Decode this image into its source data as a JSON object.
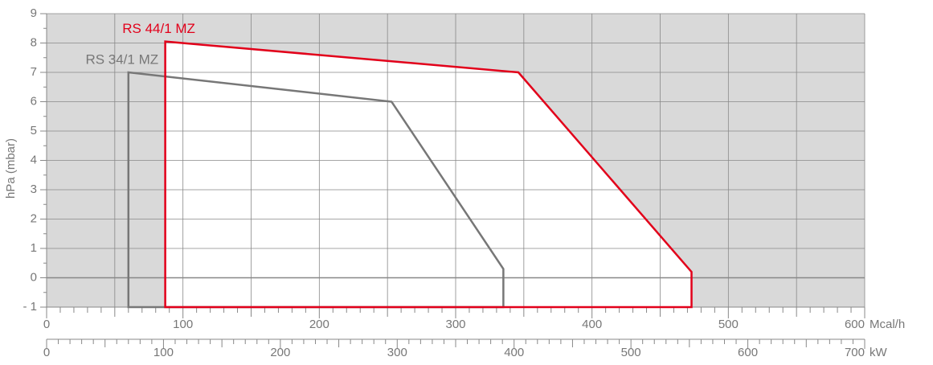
{
  "chart_data": {
    "type": "line",
    "y_label": "hPa (mbar)",
    "x_label": "Mcal/h",
    "x2_label": "kW",
    "xlim": [
      0,
      600
    ],
    "xticks": [
      0,
      100,
      200,
      300,
      400,
      500,
      600
    ],
    "x2lim": [
      0,
      700
    ],
    "x2ticks": [
      0,
      100,
      200,
      300,
      400,
      500,
      600,
      700
    ],
    "ylim": [
      -1,
      9
    ],
    "yticks": [
      {
        "value": -1,
        "label": "- 1"
      },
      0,
      1,
      2,
      3,
      4,
      5,
      6,
      7,
      8,
      9
    ],
    "grid": true,
    "series": [
      {
        "name": "RS 34/1 MZ",
        "color": "#777777",
        "x": [
          60,
          60,
          253,
          335,
          335
        ],
        "values": [
          -1,
          7,
          6,
          0.3,
          -1
        ]
      },
      {
        "name": "RS 44/1 MZ",
        "color": "#e2001a",
        "x": [
          87,
          87,
          346,
          473,
          473
        ],
        "values": [
          -1,
          8.05,
          7,
          0.2,
          -1
        ]
      }
    ]
  }
}
